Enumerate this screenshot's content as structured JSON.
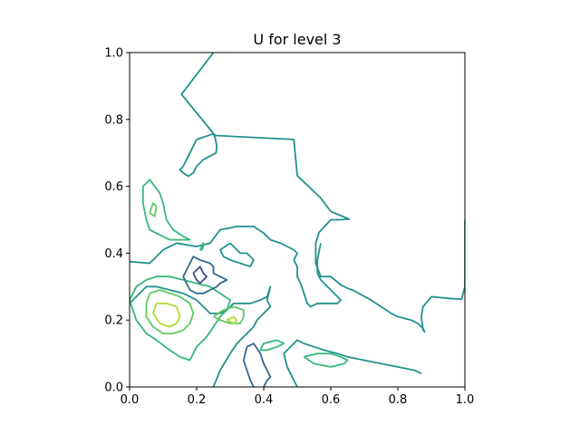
{
  "chart_data": {
    "type": "contour",
    "title": "U for level 3",
    "xlabel": "",
    "ylabel": "",
    "xlim": [
      0,
      1
    ],
    "ylim": [
      0,
      1
    ],
    "xticks": [
      "0.0",
      "0.2",
      "0.4",
      "0.6",
      "0.8",
      "1.0"
    ],
    "yticks": [
      "0.0",
      "0.2",
      "0.4",
      "0.6",
      "0.8",
      "1.0"
    ],
    "grid": false,
    "legend": "none",
    "colormap": "viridis",
    "contours": [
      {
        "color": "#21918c",
        "points": [
          [
            0.25,
            1.0
          ],
          [
            0.155,
            0.875
          ],
          [
            0.255,
            0.752
          ],
          [
            0.49,
            0.74
          ],
          [
            0.5,
            0.632
          ],
          [
            0.57,
            0.565
          ],
          [
            0.6,
            0.525
          ],
          [
            0.655,
            0.502
          ],
          [
            0.625,
            0.5
          ],
          [
            0.6,
            0.5
          ],
          [
            0.565,
            0.462
          ],
          [
            0.555,
            0.43
          ],
          [
            0.555,
            0.37
          ],
          [
            0.57,
            0.33
          ],
          [
            0.6,
            0.33
          ],
          [
            0.63,
            0.305
          ],
          [
            0.65,
            0.295
          ],
          [
            0.665,
            0.29
          ],
          [
            0.72,
            0.26
          ],
          [
            0.75,
            0.24
          ],
          [
            0.78,
            0.22
          ],
          [
            0.8,
            0.21
          ],
          [
            0.84,
            0.2
          ],
          [
            0.86,
            0.19
          ],
          [
            0.87,
            0.18
          ],
          [
            0.875,
            0.175
          ],
          [
            0.88,
            0.165
          ],
          [
            0.875,
            0.17
          ],
          [
            0.87,
            0.21
          ],
          [
            0.875,
            0.24
          ],
          [
            0.9,
            0.27
          ],
          [
            0.95,
            0.265
          ],
          [
            0.99,
            0.262
          ],
          [
            1.0,
            0.3
          ],
          [
            1.0,
            0.5
          ]
        ]
      },
      {
        "color": "#21918c",
        "points": [
          [
            0.0,
            0.375
          ],
          [
            0.06,
            0.37
          ],
          [
            0.1,
            0.41
          ],
          [
            0.14,
            0.43
          ],
          [
            0.2,
            0.42
          ],
          [
            0.24,
            0.43
          ],
          [
            0.27,
            0.47
          ],
          [
            0.32,
            0.48
          ],
          [
            0.37,
            0.48
          ],
          [
            0.4,
            0.46
          ],
          [
            0.42,
            0.44
          ],
          [
            0.45,
            0.43
          ],
          [
            0.47,
            0.42
          ],
          [
            0.49,
            0.41
          ],
          [
            0.5,
            0.4
          ],
          [
            0.49,
            0.38
          ],
          [
            0.5,
            0.36
          ],
          [
            0.5,
            0.33
          ],
          [
            0.51,
            0.31
          ],
          [
            0.52,
            0.28
          ],
          [
            0.53,
            0.25
          ],
          [
            0.54,
            0.24
          ],
          [
            0.56,
            0.25
          ],
          [
            0.6,
            0.25
          ],
          [
            0.62,
            0.25
          ],
          [
            0.63,
            0.26
          ],
          [
            0.62,
            0.27
          ],
          [
            0.59,
            0.3
          ],
          [
            0.57,
            0.32
          ],
          [
            0.56,
            0.34
          ],
          [
            0.56,
            0.38
          ],
          [
            0.57,
            0.43
          ]
        ]
      },
      {
        "color": "#21918c",
        "points": [
          [
            0.0,
            0.25
          ],
          [
            0.05,
            0.3
          ],
          [
            0.08,
            0.3
          ],
          [
            0.12,
            0.29
          ],
          [
            0.16,
            0.28
          ],
          [
            0.2,
            0.26
          ],
          [
            0.22,
            0.24
          ],
          [
            0.24,
            0.22
          ],
          [
            0.27,
            0.22
          ],
          [
            0.29,
            0.23
          ],
          [
            0.31,
            0.25
          ],
          [
            0.33,
            0.25
          ],
          [
            0.36,
            0.25
          ],
          [
            0.39,
            0.26
          ],
          [
            0.41,
            0.27
          ],
          [
            0.42,
            0.3
          ],
          [
            0.41,
            0.26
          ],
          [
            0.42,
            0.24
          ],
          [
            0.4,
            0.22
          ],
          [
            0.38,
            0.2
          ],
          [
            0.37,
            0.18
          ],
          [
            0.36,
            0.17
          ],
          [
            0.34,
            0.15
          ],
          [
            0.32,
            0.13
          ],
          [
            0.3,
            0.1
          ],
          [
            0.27,
            0.05
          ],
          [
            0.25,
            0.0
          ]
        ]
      },
      {
        "color": "#21918c",
        "points": [
          [
            0.3,
            0.43
          ],
          [
            0.27,
            0.41
          ],
          [
            0.28,
            0.39
          ],
          [
            0.3,
            0.38
          ],
          [
            0.33,
            0.37
          ],
          [
            0.36,
            0.36
          ],
          [
            0.37,
            0.38
          ],
          [
            0.35,
            0.4
          ],
          [
            0.33,
            0.4
          ],
          [
            0.31,
            0.42
          ],
          [
            0.3,
            0.43
          ]
        ]
      },
      {
        "color": "#21918c",
        "points": [
          [
            0.2,
            0.74
          ],
          [
            0.25,
            0.757
          ],
          [
            0.255,
            0.745
          ],
          [
            0.26,
            0.72
          ],
          [
            0.258,
            0.7
          ],
          [
            0.22,
            0.68
          ],
          [
            0.2,
            0.66
          ],
          [
            0.19,
            0.64
          ],
          [
            0.175,
            0.63
          ],
          [
            0.16,
            0.64
          ],
          [
            0.15,
            0.65
          ],
          [
            0.16,
            0.66
          ],
          [
            0.18,
            0.7
          ],
          [
            0.2,
            0.74
          ]
        ]
      },
      {
        "color": "#21918c",
        "points": [
          [
            0.5,
            0.0
          ],
          [
            0.47,
            0.06
          ],
          [
            0.46,
            0.1
          ],
          [
            0.49,
            0.13
          ],
          [
            0.5,
            0.14
          ],
          [
            0.52,
            0.13
          ],
          [
            0.55,
            0.12
          ],
          [
            0.58,
            0.11
          ],
          [
            0.62,
            0.1
          ],
          [
            0.65,
            0.09
          ],
          [
            0.7,
            0.08
          ],
          [
            0.75,
            0.07
          ],
          [
            0.8,
            0.06
          ],
          [
            0.85,
            0.05
          ],
          [
            0.87,
            0.04
          ]
        ]
      },
      {
        "color": "#35b779",
        "points": [
          [
            0.04,
            0.6
          ],
          [
            0.06,
            0.62
          ],
          [
            0.09,
            0.58
          ],
          [
            0.1,
            0.55
          ],
          [
            0.11,
            0.5
          ],
          [
            0.13,
            0.47
          ],
          [
            0.16,
            0.45
          ],
          [
            0.18,
            0.44
          ],
          [
            0.15,
            0.44
          ],
          [
            0.12,
            0.44
          ],
          [
            0.1,
            0.45
          ],
          [
            0.08,
            0.46
          ],
          [
            0.06,
            0.47
          ],
          [
            0.05,
            0.5
          ],
          [
            0.04,
            0.55
          ],
          [
            0.04,
            0.6
          ]
        ]
      },
      {
        "color": "#35b779",
        "points": [
          [
            0.05,
            0.32
          ],
          [
            0.02,
            0.3
          ],
          [
            0.0,
            0.26
          ],
          [
            0.02,
            0.2
          ],
          [
            0.05,
            0.16
          ],
          [
            0.08,
            0.14
          ],
          [
            0.12,
            0.11
          ],
          [
            0.15,
            0.09
          ],
          [
            0.18,
            0.08
          ],
          [
            0.2,
            0.12
          ],
          [
            0.23,
            0.15
          ],
          [
            0.25,
            0.18
          ],
          [
            0.27,
            0.21
          ],
          [
            0.29,
            0.23
          ],
          [
            0.3,
            0.26
          ],
          [
            0.27,
            0.28
          ],
          [
            0.24,
            0.3
          ],
          [
            0.2,
            0.31
          ],
          [
            0.16,
            0.32
          ],
          [
            0.12,
            0.33
          ],
          [
            0.08,
            0.33
          ],
          [
            0.05,
            0.32
          ]
        ]
      },
      {
        "color": "#35b779",
        "points": [
          [
            0.52,
            0.09
          ],
          [
            0.55,
            0.07
          ],
          [
            0.6,
            0.06
          ],
          [
            0.64,
            0.07
          ],
          [
            0.65,
            0.08
          ],
          [
            0.63,
            0.09
          ],
          [
            0.6,
            0.1
          ],
          [
            0.56,
            0.1
          ],
          [
            0.52,
            0.09
          ]
        ]
      },
      {
        "color": "#35b779",
        "points": [
          [
            0.44,
            0.14
          ],
          [
            0.4,
            0.13
          ],
          [
            0.39,
            0.11
          ],
          [
            0.41,
            0.11
          ],
          [
            0.44,
            0.12
          ],
          [
            0.46,
            0.13
          ],
          [
            0.44,
            0.14
          ]
        ]
      },
      {
        "color": "#35b779",
        "points": [
          [
            0.21,
            0.41
          ],
          [
            0.215,
            0.42
          ],
          [
            0.22,
            0.43
          ],
          [
            0.22,
            0.42
          ],
          [
            0.215,
            0.41
          ],
          [
            0.21,
            0.41
          ]
        ]
      },
      {
        "color": "#31688e",
        "points": [
          [
            0.17,
            0.31
          ],
          [
            0.16,
            0.33
          ],
          [
            0.17,
            0.35
          ],
          [
            0.18,
            0.37
          ],
          [
            0.19,
            0.39
          ],
          [
            0.21,
            0.38
          ],
          [
            0.24,
            0.37
          ],
          [
            0.25,
            0.36
          ],
          [
            0.25,
            0.34
          ],
          [
            0.27,
            0.33
          ],
          [
            0.29,
            0.32
          ],
          [
            0.27,
            0.31
          ],
          [
            0.26,
            0.3
          ],
          [
            0.24,
            0.29
          ],
          [
            0.22,
            0.28
          ],
          [
            0.2,
            0.28
          ],
          [
            0.18,
            0.29
          ],
          [
            0.17,
            0.31
          ]
        ]
      },
      {
        "color": "#31688e",
        "points": [
          [
            0.37,
            0.0
          ],
          [
            0.36,
            0.02
          ],
          [
            0.35,
            0.05
          ],
          [
            0.34,
            0.08
          ],
          [
            0.35,
            0.12
          ],
          [
            0.37,
            0.13
          ],
          [
            0.39,
            0.1
          ],
          [
            0.4,
            0.07
          ],
          [
            0.41,
            0.05
          ],
          [
            0.42,
            0.03
          ],
          [
            0.41,
            0.02
          ],
          [
            0.4,
            0.0
          ]
        ]
      },
      {
        "color": "#3e4989",
        "points": [
          [
            0.19,
            0.34
          ],
          [
            0.2,
            0.35
          ],
          [
            0.21,
            0.36
          ],
          [
            0.22,
            0.34
          ],
          [
            0.23,
            0.33
          ],
          [
            0.22,
            0.32
          ],
          [
            0.21,
            0.31
          ],
          [
            0.2,
            0.32
          ],
          [
            0.19,
            0.34
          ]
        ]
      },
      {
        "color": "#5ec962",
        "points": [
          [
            0.06,
            0.28
          ],
          [
            0.05,
            0.25
          ],
          [
            0.05,
            0.21
          ],
          [
            0.07,
            0.18
          ],
          [
            0.1,
            0.16
          ],
          [
            0.13,
            0.16
          ],
          [
            0.16,
            0.17
          ],
          [
            0.18,
            0.19
          ],
          [
            0.19,
            0.22
          ],
          [
            0.18,
            0.25
          ],
          [
            0.15,
            0.27
          ],
          [
            0.12,
            0.28
          ],
          [
            0.09,
            0.29
          ],
          [
            0.06,
            0.28
          ]
        ]
      },
      {
        "color": "#5ec962",
        "points": [
          [
            0.25,
            0.21
          ],
          [
            0.27,
            0.2
          ],
          [
            0.3,
            0.19
          ],
          [
            0.33,
            0.19
          ],
          [
            0.34,
            0.21
          ],
          [
            0.34,
            0.23
          ],
          [
            0.31,
            0.24
          ],
          [
            0.28,
            0.23
          ],
          [
            0.25,
            0.21
          ]
        ]
      },
      {
        "color": "#5ec962",
        "points": [
          [
            0.06,
            0.52
          ],
          [
            0.07,
            0.55
          ],
          [
            0.08,
            0.54
          ],
          [
            0.075,
            0.51
          ],
          [
            0.06,
            0.52
          ]
        ]
      },
      {
        "color": "#addc30",
        "points": [
          [
            0.08,
            0.25
          ],
          [
            0.07,
            0.22
          ],
          [
            0.09,
            0.19
          ],
          [
            0.12,
            0.18
          ],
          [
            0.14,
            0.19
          ],
          [
            0.15,
            0.21
          ],
          [
            0.14,
            0.24
          ],
          [
            0.11,
            0.25
          ],
          [
            0.08,
            0.25
          ]
        ]
      },
      {
        "color": "#addc30",
        "points": [
          [
            0.29,
            0.2
          ],
          [
            0.31,
            0.19
          ],
          [
            0.32,
            0.2
          ],
          [
            0.31,
            0.21
          ],
          [
            0.29,
            0.2
          ]
        ]
      }
    ]
  }
}
